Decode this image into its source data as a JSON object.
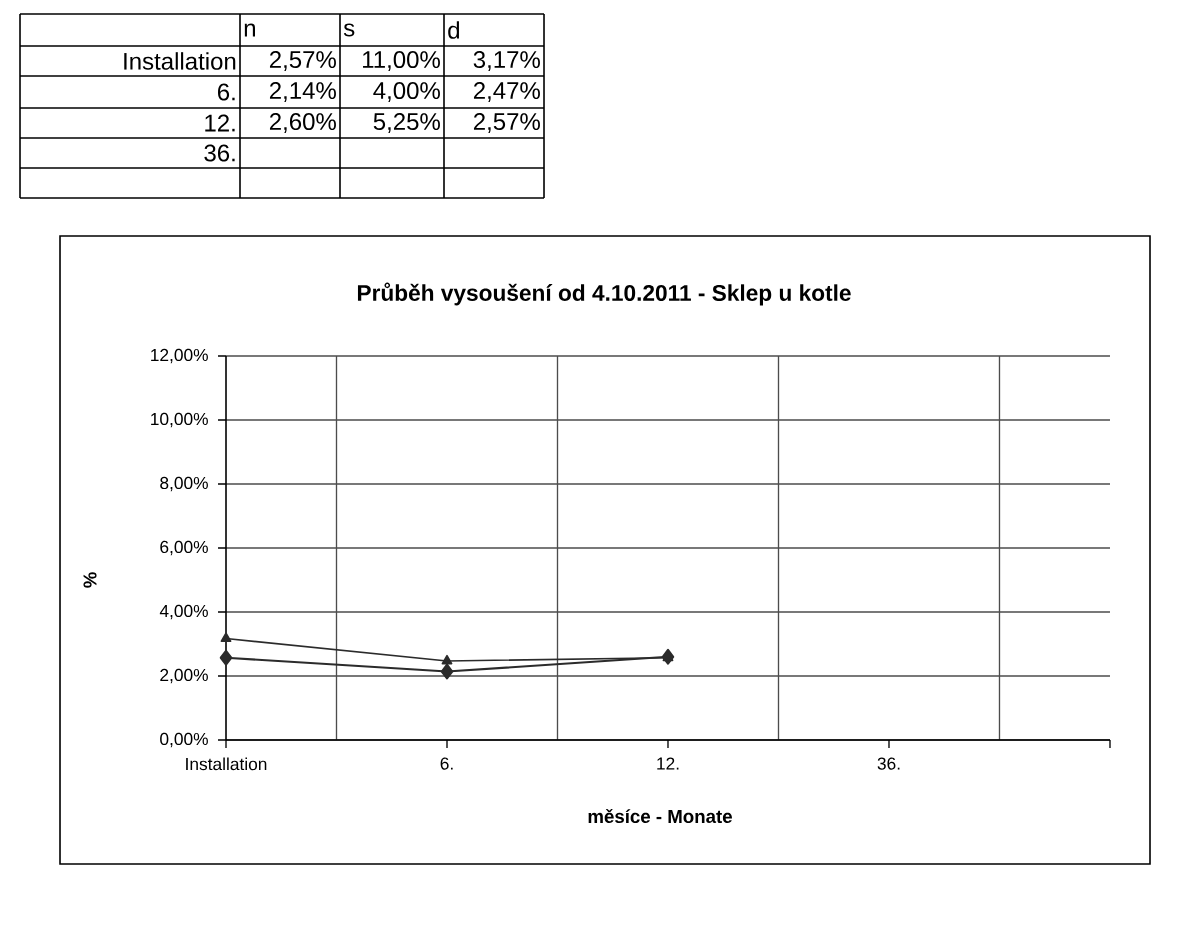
{
  "chart_data": [
    {
      "type": "other",
      "categories": [
        "n",
        "s",
        "d"
      ],
      "y_categories": [
        "Installation",
        "6.",
        "12.",
        "36.",
        null
      ],
      "cell_labels": [
        [
          "2,57%",
          "11,00%",
          "3,17%"
        ],
        [
          "2,14%",
          "4,00%",
          "2,47%"
        ],
        [
          "2,60%",
          "5,25%",
          "2,57%"
        ],
        [
          null,
          null,
          null
        ],
        [
          null,
          null,
          null
        ]
      ]
    },
    {
      "type": "line",
      "title": "Průběh vysoušení od 4.10.2011 - Sklep u kotle",
      "xlabel": "měsíce - Monate",
      "ylabel": "%",
      "categories": [
        "Installation",
        "6.",
        "12.",
        "36.",
        null
      ],
      "series": [
        {
          "color": "#2b2b2b",
          "marker": "diamond",
          "values": [
            2.57,
            2.14,
            2.6,
            null,
            null
          ]
        },
        {
          "color": "#2b2b2b",
          "marker": "triangle",
          "values": [
            3.17,
            2.47,
            2.57,
            null,
            null
          ]
        }
      ],
      "ylim": [
        0,
        12
      ],
      "yticks": [
        {
          "value": 0,
          "label": "0,00%"
        },
        {
          "value": 2,
          "label": "2,00%"
        },
        {
          "value": 4,
          "label": "4,00%"
        },
        {
          "value": 6,
          "label": "6,00%"
        },
        {
          "value": 8,
          "label": "8,00%"
        },
        {
          "value": 10,
          "label": "10,00%"
        },
        {
          "value": 12,
          "label": "12,00%"
        }
      ],
      "grid": true
    }
  ]
}
